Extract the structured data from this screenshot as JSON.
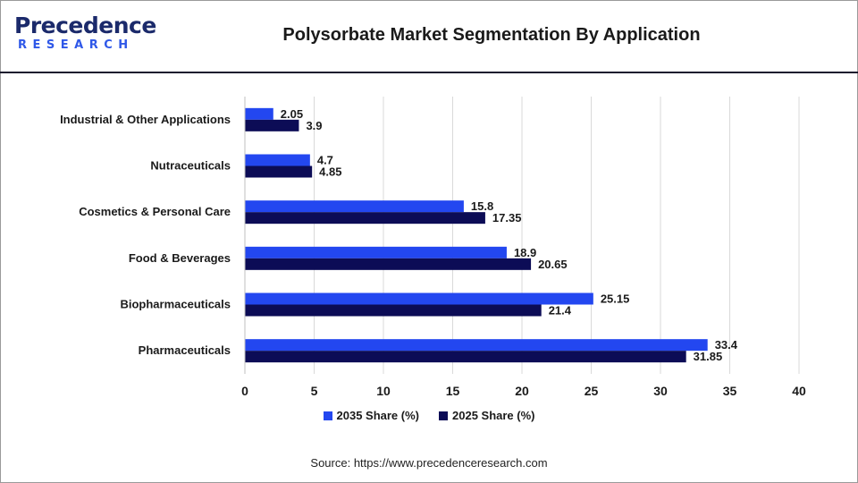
{
  "logo": {
    "name": "Precedence",
    "sub": "RESEARCH"
  },
  "title": "Polysorbate Market Segmentation By Application",
  "source": "Source: https://www.precedenceresearch.com",
  "colors": {
    "s2035": "#2347f0",
    "s2025": "#0c0c56",
    "grid": "#d9d9d9"
  },
  "chart_data": {
    "type": "bar",
    "orientation": "horizontal",
    "categories": [
      "Industrial & Other Applications",
      "Nutraceuticals",
      "Cosmetics & Personal Care",
      "Food & Beverages",
      "Biopharmaceuticals",
      "Pharmaceuticals"
    ],
    "series": [
      {
        "name": "2035 Share (%)",
        "values": [
          2.05,
          4.7,
          15.8,
          18.9,
          25.15,
          33.4
        ]
      },
      {
        "name": "2025 Share (%)",
        "values": [
          3.9,
          4.85,
          17.35,
          20.65,
          21.4,
          31.85
        ]
      }
    ],
    "value_labels": [
      [
        "2.05",
        "4.7",
        "15.8",
        "18.9",
        "25.15",
        "33.4"
      ],
      [
        "3.9",
        "4.85",
        "17.35",
        "20.65",
        "21.4",
        "31.85"
      ]
    ],
    "xlim": [
      0,
      40
    ],
    "xticks": [
      0,
      5,
      10,
      15,
      20,
      25,
      30,
      35,
      40
    ],
    "grid": true,
    "legend_position": "bottom"
  }
}
